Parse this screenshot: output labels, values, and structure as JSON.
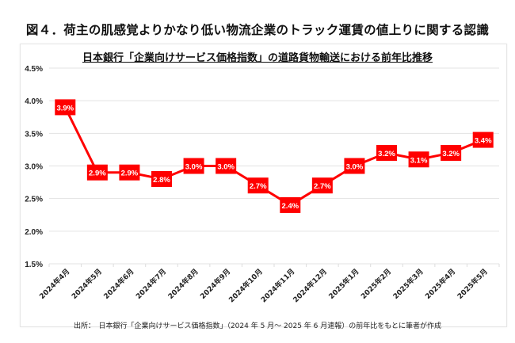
{
  "figure_title": "図４．荷主の肌感覚よりかなり低い物流企業のトラック運賃の値上りに関する認識",
  "source": "出所：　日本銀行「企業向けサービス価格指数」（2024 年 5 月～ 2025 年 6 月速報）の前年比をもとに筆者が作成",
  "chart_data": {
    "type": "line",
    "title": "日本銀行「企業向けサービス価格指数」の道路貨物輸送における前年比推移",
    "categories": [
      "2024年4月",
      "2024年5月",
      "2024年6月",
      "2024年7月",
      "2024年8月",
      "2024年9月",
      "2024年10月",
      "2024年11月",
      "2024年12月",
      "2025年1月",
      "2025年2月",
      "2025年3月",
      "2025年4月",
      "2025年5月"
    ],
    "values": [
      3.9,
      2.9,
      2.9,
      2.8,
      3.0,
      3.0,
      2.7,
      2.4,
      2.7,
      3.0,
      3.2,
      3.1,
      3.2,
      3.4
    ],
    "labels": [
      "3.9%",
      "2.9%",
      "2.9%",
      "2.8%",
      "3.0%",
      "3.0%",
      "2.7%",
      "2.4%",
      "2.7%",
      "3.0%",
      "3.2%",
      "3.1%",
      "3.2%",
      "3.4%"
    ],
    "yticks": [
      "1.5%",
      "2.0%",
      "2.5%",
      "3.0%",
      "3.5%",
      "4.0%",
      "4.5%"
    ],
    "ylim": [
      1.5,
      4.5
    ],
    "grid": true,
    "color": "#ff0000"
  }
}
